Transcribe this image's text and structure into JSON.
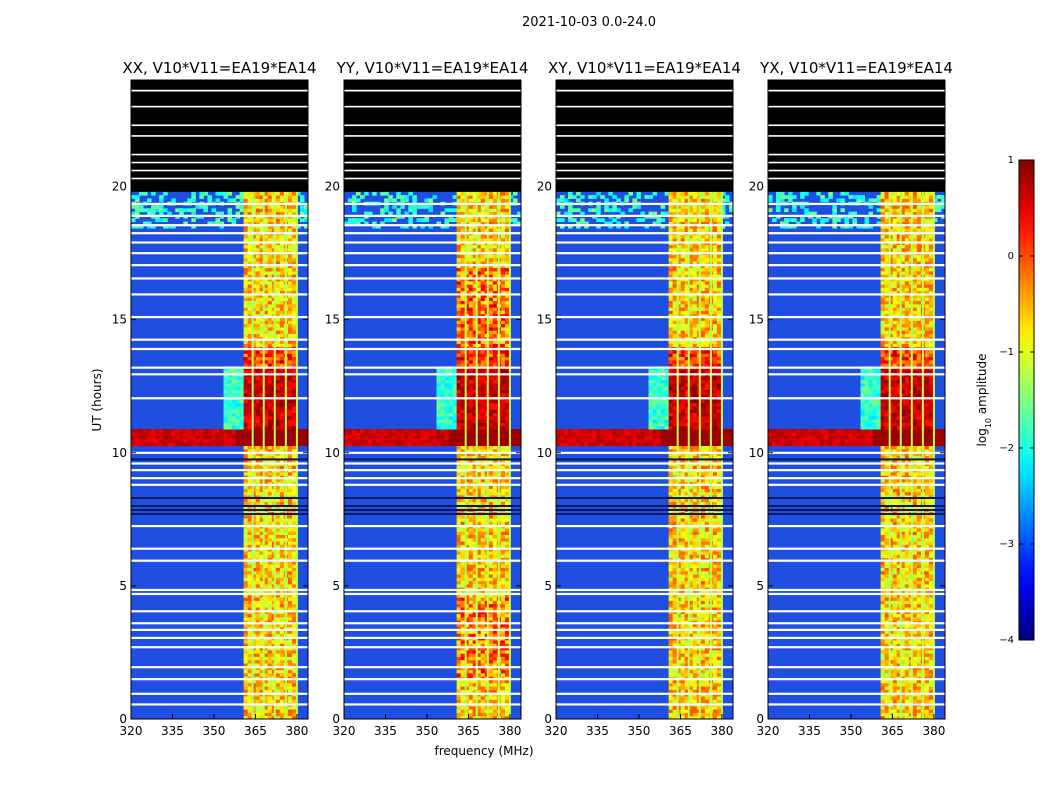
{
  "figure": {
    "suptitle": "2021-10-03 0.0-24.0"
  },
  "chart_data": {
    "type": "heatmap",
    "panels": [
      {
        "name": "XX",
        "title": "XX, V10*V11=EA19*EA14"
      },
      {
        "name": "YY",
        "title": "YY, V10*V11=EA19*EA14"
      },
      {
        "name": "XY",
        "title": "XY, V10*V11=EA19*EA14"
      },
      {
        "name": "YX",
        "title": "YX, V10*V11=EA19*EA14"
      }
    ],
    "xlabel": "frequency (MHz)",
    "ylabel": "UT (hours)",
    "xlim": [
      320,
      384
    ],
    "ylim": [
      0,
      24
    ],
    "xticks": [
      320,
      335,
      350,
      365,
      380
    ],
    "xtick_labels": [
      "320",
      "335",
      "350",
      "365",
      "380"
    ],
    "yticks": [
      0,
      5,
      10,
      15,
      20
    ],
    "ytick_labels": [
      "0",
      "5",
      "10",
      "15",
      "20"
    ],
    "colorbar": {
      "label_prefix": "log",
      "label_sub": "10",
      "label_suffix": " amplitude",
      "range": [
        -4,
        1
      ],
      "ticks": [
        1,
        0,
        -1,
        -2,
        -3,
        -4
      ],
      "tick_labels": [
        "1",
        "0",
        "−1",
        "−2",
        "−3",
        "−4"
      ],
      "colormap": "jet"
    },
    "no_data_after_hour": 19.8,
    "bright_band_mhz": [
      360.5,
      380
    ],
    "bright_band_xy_yx_mhz": [
      360.5,
      380
    ],
    "flare_hours": [
      10.3,
      10.9
    ],
    "colors": {
      "nodata": "#000000",
      "flagged": "#ffffff",
      "background": "#1f4fe0"
    }
  }
}
